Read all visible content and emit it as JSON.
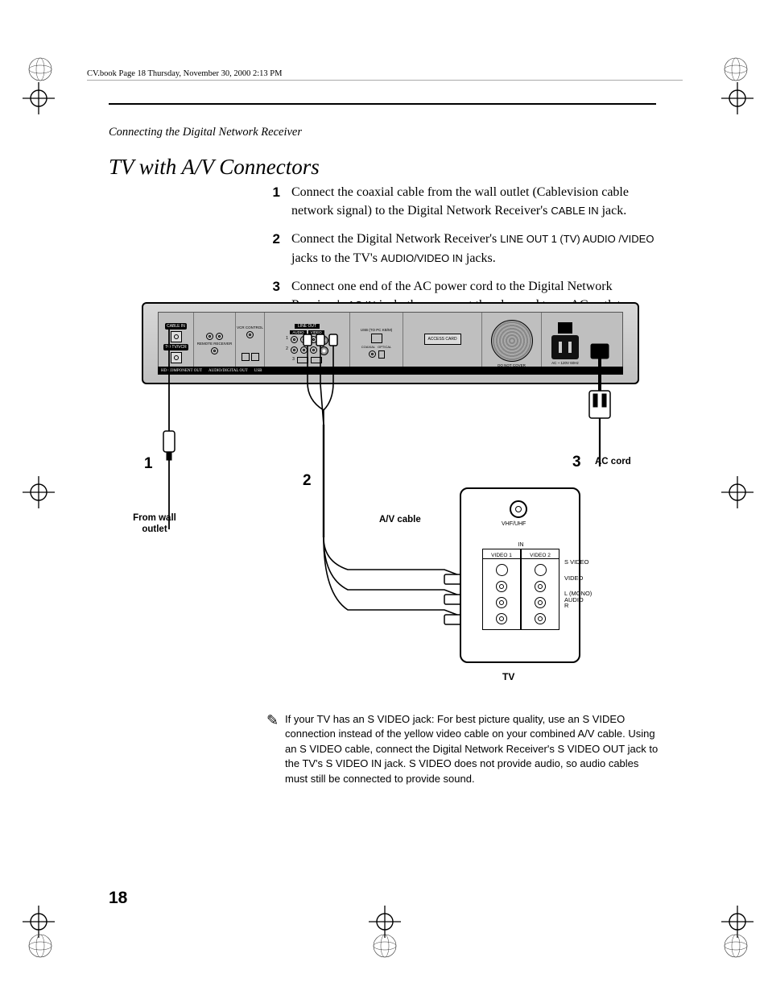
{
  "page": {
    "header_line": "CV.book  Page 18  Thursday, November 30, 2000  2:13 PM",
    "section_label": "Connecting the Digital Network Receiver",
    "title": "TV with A/V Connectors",
    "page_number": "18"
  },
  "steps": [
    {
      "num": "1",
      "parts": [
        {
          "t": "plain",
          "v": "Connect the coaxial cable from the wall outlet (Cablevision cable network signal) to the Digital Network Receiver's "
        },
        {
          "t": "sc",
          "v": "CABLE IN"
        },
        {
          "t": "plain",
          "v": " jack."
        }
      ]
    },
    {
      "num": "2",
      "parts": [
        {
          "t": "plain",
          "v": "Connect the Digital Network Receiver's "
        },
        {
          "t": "sc",
          "v": "LINE OUT 1 (TV) AUDIO /VIDEO"
        },
        {
          "t": "plain",
          "v": " jacks to the TV's "
        },
        {
          "t": "sc",
          "v": "AUDIO/VIDEO IN"
        },
        {
          "t": "plain",
          "v": " jacks."
        }
      ]
    },
    {
      "num": "3",
      "parts": [
        {
          "t": "plain",
          "v": "Connect one end of the AC power cord to the Digital Network Receiver's "
        },
        {
          "t": "sc",
          "v": "AC IN"
        },
        {
          "t": "plain",
          "v": " jack, then connect the plug end to an AC outlet."
        }
      ]
    }
  ],
  "diagram": {
    "labels": {
      "from_wall": "From wall\noutlet",
      "av_cable": "A/V cable",
      "ac_cord": "AC cord",
      "tv": "TV",
      "n1": "1",
      "n2": "2",
      "n3": "3"
    },
    "receiver_panel": {
      "cable_in": "CABLE IN",
      "to_tvvcr": "TO TV/VCR",
      "remote": "REMOTE RECEIVER",
      "vcr_control": "VCR CONTROL",
      "line_out": "LINE OUT",
      "audio": "AUDIO",
      "video": "VIDEO",
      "svideo": "S VIDEO",
      "usb_kb": "USB (TO PC KB/M)",
      "coaxial": "COAXIAL",
      "optical": "OPTICAL",
      "audio_digital_out": "AUDIO/DIGITAL OUT",
      "hd": "HD COMPONENT OUT",
      "usb": "USB",
      "access_card": "ACCESS CARD",
      "do_not_cover": "DO NOT COVER",
      "ac": "AC ~ 120V 60Hz",
      "master": "MASTER POWER = ON MAINS"
    },
    "tv_panel": {
      "vhf": "VHF/UHF",
      "in": "IN",
      "video1": "VIDEO 1",
      "video2": "VIDEO 2",
      "svideo": "S VIDEO",
      "video": "VIDEO",
      "audio_l": "L (MONO)",
      "audio": "AUDIO",
      "audio_r": "R"
    },
    "colors": {
      "receiver_bg": "#c5c5c5",
      "border": "#000000",
      "page_bg": "#ffffff"
    }
  },
  "note": {
    "text": "If your TV has an S VIDEO jack: For best picture quality, use an S VIDEO connection instead of the yellow video cable on your combined A/V cable. Using an S VIDEO cable, connect the Digital Network Receiver's S VIDEO OUT jack to the TV's S VIDEO IN jack. S VIDEO does not provide audio, so audio cables must still be connected to provide sound."
  }
}
